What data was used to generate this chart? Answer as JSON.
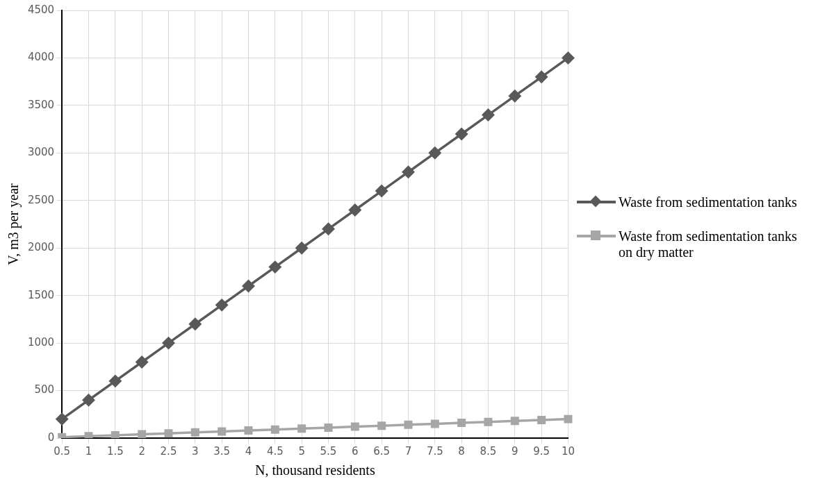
{
  "chart_data": {
    "type": "line",
    "xlabel": "N, thousand residents",
    "ylabel": "V, m3 per year",
    "categories": [
      "0.5",
      "1",
      "1.5",
      "2",
      "2.5",
      "3",
      "3.5",
      "4",
      "4.5",
      "5",
      "5.5",
      "6",
      "6.5",
      "7",
      "7.5",
      "8",
      "8.5",
      "9",
      "9.5",
      "10"
    ],
    "series": [
      {
        "name": "Waste from sedimentation tanks",
        "color": "#595959",
        "marker": "diamond",
        "values": [
          200,
          400,
          600,
          800,
          1000,
          1200,
          1400,
          1600,
          1800,
          2000,
          2200,
          2400,
          2600,
          2800,
          3000,
          3200,
          3400,
          3600,
          3800,
          4000
        ]
      },
      {
        "name": "Waste from sedimentation tanks on dry matter",
        "color": "#a6a6a6",
        "marker": "square",
        "values": [
          10,
          20,
          30,
          40,
          50,
          60,
          70,
          80,
          90,
          100,
          110,
          120,
          130,
          140,
          150,
          160,
          170,
          180,
          190,
          200
        ]
      }
    ],
    "ylim": [
      0,
      4500
    ],
    "yticks": [
      0,
      500,
      1000,
      1500,
      2000,
      2500,
      3000,
      3500,
      4000,
      4500
    ],
    "grid": true,
    "legend": "right",
    "line_style": "solid"
  }
}
